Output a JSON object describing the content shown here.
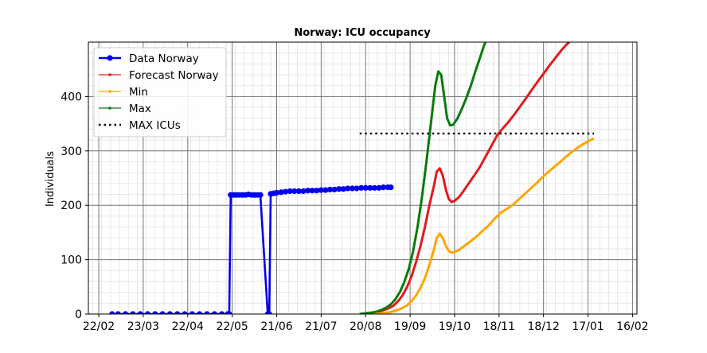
{
  "chart_data": {
    "type": "line",
    "title": "Norway: ICU occupancy",
    "xlabel": "",
    "ylabel": "Individuals",
    "x_unit": "days since 2020-01-01",
    "xlim": [
      45,
      415
    ],
    "ylim": [
      0,
      500
    ],
    "xticks": [
      {
        "x": 52,
        "label": "22/02"
      },
      {
        "x": 82,
        "label": "23/03"
      },
      {
        "x": 112,
        "label": "22/04"
      },
      {
        "x": 142,
        "label": "22/05"
      },
      {
        "x": 172,
        "label": "21/06"
      },
      {
        "x": 202,
        "label": "21/07"
      },
      {
        "x": 232,
        "label": "20/08"
      },
      {
        "x": 262,
        "label": "19/09"
      },
      {
        "x": 292,
        "label": "19/10"
      },
      {
        "x": 322,
        "label": "18/11"
      },
      {
        "x": 352,
        "label": "18/12"
      },
      {
        "x": 382,
        "label": "17/01"
      },
      {
        "x": 412,
        "label": "16/02"
      }
    ],
    "yticks": [
      0,
      100,
      200,
      300,
      400
    ],
    "grid": true,
    "legend_position": "top-left",
    "series": [
      {
        "name": "Data Norway",
        "color": "#0000ee",
        "style": "data",
        "points": [
          [
            61,
            0
          ],
          [
            65,
            0
          ],
          [
            70,
            0
          ],
          [
            75,
            0
          ],
          [
            80,
            0
          ],
          [
            85,
            0
          ],
          [
            90,
            0
          ],
          [
            95,
            0
          ],
          [
            100,
            0
          ],
          [
            105,
            0
          ],
          [
            110,
            0
          ],
          [
            115,
            0
          ],
          [
            120,
            0
          ],
          [
            125,
            0
          ],
          [
            130,
            0
          ],
          [
            135,
            0
          ],
          [
            139,
            0
          ],
          [
            140,
            0
          ],
          [
            141,
            219
          ],
          [
            143,
            219
          ],
          [
            145,
            219
          ],
          [
            147,
            219
          ],
          [
            149,
            219
          ],
          [
            151,
            219
          ],
          [
            153,
            220
          ],
          [
            155,
            219
          ],
          [
            157,
            219
          ],
          [
            159,
            219
          ],
          [
            161,
            219
          ],
          [
            166,
            0
          ],
          [
            167,
            0
          ],
          [
            168,
            221
          ],
          [
            170,
            222
          ],
          [
            172,
            223
          ],
          [
            175,
            224
          ],
          [
            178,
            225
          ],
          [
            181,
            226
          ],
          [
            184,
            226
          ],
          [
            187,
            226
          ],
          [
            190,
            226
          ],
          [
            193,
            227
          ],
          [
            196,
            227
          ],
          [
            199,
            227
          ],
          [
            202,
            228
          ],
          [
            205,
            228
          ],
          [
            208,
            229
          ],
          [
            211,
            229
          ],
          [
            214,
            230
          ],
          [
            217,
            230
          ],
          [
            220,
            231
          ],
          [
            223,
            231
          ],
          [
            226,
            231
          ],
          [
            229,
            232
          ],
          [
            232,
            232
          ],
          [
            235,
            232
          ],
          [
            238,
            232
          ],
          [
            241,
            232
          ],
          [
            244,
            233
          ],
          [
            247,
            233
          ],
          [
            249,
            233
          ]
        ]
      },
      {
        "name": "Forecast Norway",
        "color": "#e31a1c",
        "style": "forecast",
        "points": [
          [
            228,
            0
          ],
          [
            230,
            0.5
          ],
          [
            233,
            1
          ],
          [
            236,
            2
          ],
          [
            239,
            3
          ],
          [
            242,
            5
          ],
          [
            245,
            8
          ],
          [
            248,
            11
          ],
          [
            251,
            16
          ],
          [
            254,
            24
          ],
          [
            257,
            35
          ],
          [
            260,
            50
          ],
          [
            263,
            70
          ],
          [
            266,
            95
          ],
          [
            269,
            125
          ],
          [
            272,
            160
          ],
          [
            275,
            200
          ],
          [
            278,
            235
          ],
          [
            280,
            262
          ],
          [
            282,
            268
          ],
          [
            284,
            255
          ],
          [
            286,
            230
          ],
          [
            288,
            212
          ],
          [
            290,
            206
          ],
          [
            292,
            208
          ],
          [
            295,
            215
          ],
          [
            298,
            226
          ],
          [
            301,
            238
          ],
          [
            305,
            254
          ],
          [
            309,
            270
          ],
          [
            313,
            290
          ],
          [
            317,
            310
          ],
          [
            321,
            330
          ],
          [
            325,
            343
          ],
          [
            328,
            352
          ],
          [
            332,
            366
          ],
          [
            336,
            381
          ],
          [
            340,
            396
          ],
          [
            344,
            412
          ],
          [
            348,
            427
          ],
          [
            352,
            442
          ],
          [
            356,
            457
          ],
          [
            360,
            471
          ],
          [
            364,
            485
          ],
          [
            368,
            497
          ],
          [
            371,
            504
          ]
        ]
      },
      {
        "name": "Min",
        "color": "#ffa500",
        "style": "forecast",
        "points": [
          [
            228,
            0
          ],
          [
            235,
            0
          ],
          [
            242,
            1
          ],
          [
            248,
            3
          ],
          [
            252,
            6
          ],
          [
            256,
            10
          ],
          [
            260,
            16
          ],
          [
            263,
            24
          ],
          [
            266,
            34
          ],
          [
            269,
            48
          ],
          [
            272,
            66
          ],
          [
            275,
            90
          ],
          [
            278,
            118
          ],
          [
            280,
            140
          ],
          [
            282,
            148
          ],
          [
            284,
            140
          ],
          [
            286,
            126
          ],
          [
            288,
            116
          ],
          [
            290,
            113
          ],
          [
            292,
            114
          ],
          [
            295,
            118
          ],
          [
            299,
            126
          ],
          [
            303,
            134
          ],
          [
            307,
            143
          ],
          [
            311,
            153
          ],
          [
            315,
            163
          ],
          [
            319,
            175
          ],
          [
            323,
            186
          ],
          [
            327,
            193
          ],
          [
            331,
            200
          ],
          [
            335,
            210
          ],
          [
            339,
            220
          ],
          [
            343,
            230
          ],
          [
            347,
            240
          ],
          [
            351,
            251
          ],
          [
            355,
            261
          ],
          [
            359,
            270
          ],
          [
            363,
            279
          ],
          [
            367,
            289
          ],
          [
            371,
            298
          ],
          [
            375,
            306
          ],
          [
            379,
            313
          ],
          [
            383,
            319
          ],
          [
            386,
            323
          ]
        ]
      },
      {
        "name": "Max",
        "color": "#0a7a0a",
        "style": "forecast",
        "points": [
          [
            228,
            0
          ],
          [
            231,
            1
          ],
          [
            234,
            2
          ],
          [
            237,
            3
          ],
          [
            240,
            5
          ],
          [
            243,
            8
          ],
          [
            246,
            12
          ],
          [
            249,
            18
          ],
          [
            252,
            27
          ],
          [
            255,
            40
          ],
          [
            258,
            58
          ],
          [
            261,
            82
          ],
          [
            264,
            115
          ],
          [
            267,
            160
          ],
          [
            270,
            215
          ],
          [
            273,
            280
          ],
          [
            276,
            350
          ],
          [
            279,
            420
          ],
          [
            281,
            446
          ],
          [
            283,
            440
          ],
          [
            285,
            400
          ],
          [
            287,
            360
          ],
          [
            289,
            347
          ],
          [
            291,
            348
          ],
          [
            294,
            360
          ],
          [
            297,
            378
          ],
          [
            300,
            398
          ],
          [
            303,
            420
          ],
          [
            306,
            446
          ],
          [
            309,
            470
          ],
          [
            312,
            495
          ],
          [
            314,
            507
          ]
        ]
      },
      {
        "name": "MAX ICUs",
        "color": "#000000",
        "style": "dotted",
        "points": [
          [
            228,
            332
          ],
          [
            386,
            332
          ]
        ]
      }
    ]
  }
}
